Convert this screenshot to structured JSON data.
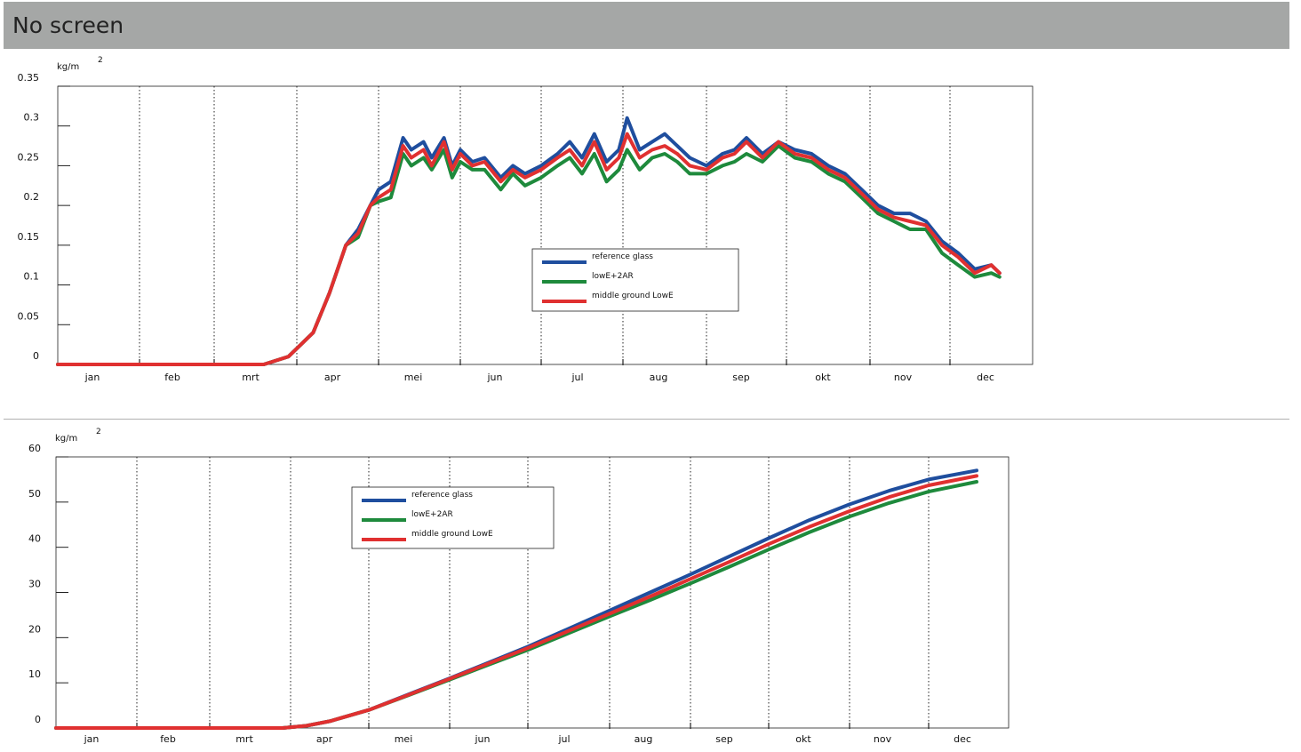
{
  "page": {
    "title": "No screen"
  },
  "chart_data": [
    {
      "type": "line",
      "title": "",
      "ylabel": "kg/m",
      "ylabel_superscript": "2",
      "categories": [
        "jan",
        "feb",
        "mrt",
        "apr",
        "mei",
        "jun",
        "jul",
        "aug",
        "sep",
        "okt",
        "nov",
        "dec"
      ],
      "ylim": [
        0,
        0.35
      ],
      "yticks": [
        0,
        0.05,
        0.1,
        0.15,
        0.2,
        0.25,
        0.3,
        0.35
      ],
      "ytick_labels": [
        "0",
        "0.05",
        "0.1",
        "0.15",
        "0.2",
        "0.25",
        "0.3",
        "0.35"
      ],
      "grid": "vertical dotted at month boundaries",
      "legend_position": "center-right",
      "x_unit": "month (0 = start of jan, 12 = end of dec)",
      "series": [
        {
          "name": "reference glass",
          "color": "#1f4e9e",
          "x": [
            0,
            1,
            2,
            2.6,
            2.9,
            3.2,
            3.4,
            3.6,
            3.75,
            3.9,
            4.0,
            4.15,
            4.3,
            4.4,
            4.55,
            4.65,
            4.8,
            4.9,
            5.0,
            5.15,
            5.3,
            5.5,
            5.65,
            5.8,
            6.0,
            6.2,
            6.35,
            6.5,
            6.65,
            6.8,
            6.95,
            7.05,
            7.2,
            7.35,
            7.5,
            7.65,
            7.8,
            8.0,
            8.2,
            8.35,
            8.5,
            8.7,
            8.9,
            9.1,
            9.3,
            9.5,
            9.7,
            9.9,
            10.1,
            10.3,
            10.5,
            10.7,
            10.9,
            11.1,
            11.3,
            11.5,
            11.6
          ],
          "y": [
            0,
            0,
            0,
            0,
            0.01,
            0.04,
            0.09,
            0.15,
            0.17,
            0.2,
            0.22,
            0.23,
            0.285,
            0.27,
            0.28,
            0.26,
            0.285,
            0.25,
            0.27,
            0.255,
            0.26,
            0.235,
            0.25,
            0.24,
            0.25,
            0.265,
            0.28,
            0.26,
            0.29,
            0.255,
            0.27,
            0.31,
            0.27,
            0.28,
            0.29,
            0.275,
            0.26,
            0.25,
            0.265,
            0.27,
            0.285,
            0.265,
            0.28,
            0.27,
            0.265,
            0.25,
            0.24,
            0.22,
            0.2,
            0.19,
            0.19,
            0.18,
            0.155,
            0.14,
            0.12,
            0.125,
            0.115
          ]
        },
        {
          "name": "lowE+2AR",
          "color": "#1e8a3c",
          "x": [
            0,
            1,
            2,
            2.6,
            2.9,
            3.2,
            3.4,
            3.6,
            3.75,
            3.9,
            4.0,
            4.15,
            4.3,
            4.4,
            4.55,
            4.65,
            4.8,
            4.9,
            5.0,
            5.15,
            5.3,
            5.5,
            5.65,
            5.8,
            6.0,
            6.2,
            6.35,
            6.5,
            6.65,
            6.8,
            6.95,
            7.05,
            7.2,
            7.35,
            7.5,
            7.65,
            7.8,
            8.0,
            8.2,
            8.35,
            8.5,
            8.7,
            8.9,
            9.1,
            9.3,
            9.5,
            9.7,
            9.9,
            10.1,
            10.3,
            10.5,
            10.7,
            10.9,
            11.1,
            11.3,
            11.5,
            11.6
          ],
          "y": [
            0,
            0,
            0,
            0,
            0.01,
            0.04,
            0.09,
            0.15,
            0.16,
            0.2,
            0.205,
            0.21,
            0.265,
            0.25,
            0.26,
            0.245,
            0.27,
            0.235,
            0.255,
            0.245,
            0.245,
            0.22,
            0.24,
            0.225,
            0.235,
            0.25,
            0.26,
            0.24,
            0.265,
            0.23,
            0.245,
            0.27,
            0.245,
            0.26,
            0.265,
            0.255,
            0.24,
            0.24,
            0.25,
            0.255,
            0.265,
            0.255,
            0.275,
            0.26,
            0.255,
            0.24,
            0.23,
            0.21,
            0.19,
            0.18,
            0.17,
            0.17,
            0.14,
            0.125,
            0.11,
            0.115,
            0.11
          ]
        },
        {
          "name": "middle ground LowE",
          "color": "#e03030",
          "x": [
            0,
            1,
            2,
            2.6,
            2.9,
            3.2,
            3.4,
            3.6,
            3.75,
            3.9,
            4.0,
            4.15,
            4.3,
            4.4,
            4.55,
            4.65,
            4.8,
            4.9,
            5.0,
            5.15,
            5.3,
            5.5,
            5.65,
            5.8,
            6.0,
            6.2,
            6.35,
            6.5,
            6.65,
            6.8,
            6.95,
            7.05,
            7.2,
            7.35,
            7.5,
            7.65,
            7.8,
            8.0,
            8.2,
            8.35,
            8.5,
            8.7,
            8.9,
            9.1,
            9.3,
            9.5,
            9.7,
            9.9,
            10.1,
            10.3,
            10.5,
            10.7,
            10.9,
            11.1,
            11.3,
            11.5,
            11.6
          ],
          "y": [
            0,
            0,
            0,
            0,
            0.01,
            0.04,
            0.09,
            0.15,
            0.165,
            0.2,
            0.21,
            0.22,
            0.275,
            0.26,
            0.27,
            0.25,
            0.28,
            0.245,
            0.265,
            0.25,
            0.255,
            0.23,
            0.245,
            0.235,
            0.245,
            0.26,
            0.27,
            0.25,
            0.28,
            0.245,
            0.26,
            0.29,
            0.26,
            0.27,
            0.275,
            0.265,
            0.25,
            0.245,
            0.26,
            0.265,
            0.28,
            0.26,
            0.28,
            0.265,
            0.26,
            0.245,
            0.235,
            0.215,
            0.195,
            0.185,
            0.18,
            0.175,
            0.15,
            0.135,
            0.115,
            0.125,
            0.115
          ]
        }
      ]
    },
    {
      "type": "line",
      "title": "",
      "ylabel": "kg/m",
      "ylabel_superscript": "2",
      "categories": [
        "jan",
        "feb",
        "mrt",
        "apr",
        "mei",
        "jun",
        "jul",
        "aug",
        "sep",
        "okt",
        "nov",
        "dec"
      ],
      "ylim": [
        0,
        60
      ],
      "yticks": [
        0,
        10,
        20,
        30,
        40,
        50,
        60
      ],
      "ytick_labels": [
        "0",
        "10",
        "20",
        "30",
        "40",
        "50",
        "60"
      ],
      "grid": "vertical dotted at month boundaries",
      "legend_position": "top-left",
      "x_unit": "month (0 = start of jan, 12 = end of dec)",
      "series": [
        {
          "name": "reference glass",
          "color": "#1f4e9e",
          "x": [
            0,
            1,
            2,
            2.9,
            3.2,
            3.5,
            4.0,
            4.5,
            5.0,
            5.5,
            6.0,
            6.5,
            7.0,
            7.5,
            8.0,
            8.5,
            9.0,
            9.5,
            10.0,
            10.5,
            11.0,
            11.6
          ],
          "y": [
            0,
            0,
            0,
            0,
            0.5,
            1.5,
            4,
            7.5,
            11,
            14.5,
            18,
            22,
            26,
            30,
            34,
            38,
            42,
            46,
            49.5,
            52.5,
            55,
            57
          ]
        },
        {
          "name": "lowE+2AR",
          "color": "#1e8a3c",
          "x": [
            0,
            1,
            2,
            2.9,
            3.2,
            3.5,
            4.0,
            4.5,
            5.0,
            5.5,
            6.0,
            6.5,
            7.0,
            7.5,
            8.0,
            8.5,
            9.0,
            9.5,
            10.0,
            10.5,
            11.0,
            11.6
          ],
          "y": [
            0,
            0,
            0,
            0,
            0.5,
            1.5,
            4,
            7.3,
            10.7,
            14,
            17.3,
            21,
            24.7,
            28.3,
            32,
            35.7,
            39.5,
            43.3,
            46.8,
            49.8,
            52.3,
            54.5
          ]
        },
        {
          "name": "middle ground LowE",
          "color": "#e03030",
          "x": [
            0,
            1,
            2,
            2.9,
            3.2,
            3.5,
            4.0,
            4.5,
            5.0,
            5.5,
            6.0,
            6.5,
            7.0,
            7.5,
            8.0,
            8.5,
            9.0,
            9.5,
            10.0,
            10.5,
            11.0,
            11.6
          ],
          "y": [
            0,
            0,
            0,
            0,
            0.5,
            1.5,
            4,
            7.4,
            10.9,
            14.3,
            17.7,
            21.5,
            25.3,
            29.1,
            33,
            36.8,
            40.7,
            44.5,
            48,
            51.1,
            53.7,
            55.8
          ]
        }
      ]
    }
  ]
}
